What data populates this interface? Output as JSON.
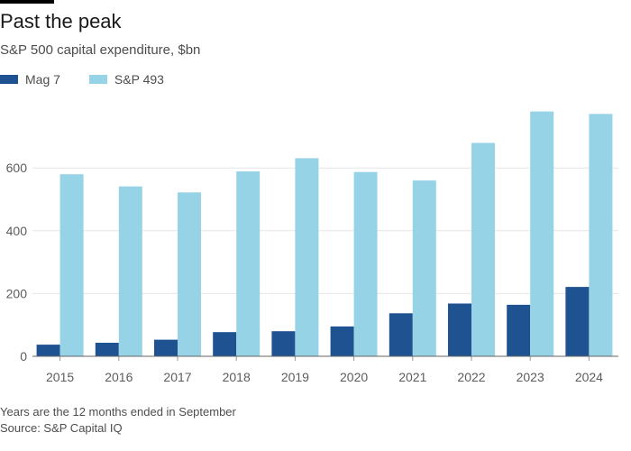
{
  "header": {
    "title": "Past the peak",
    "subtitle": "S&P 500 capital expenditure, $bn"
  },
  "footer": {
    "note": "Years are the 12 months ended in September",
    "source": "Source: S&P Capital IQ"
  },
  "chart_data": {
    "type": "bar",
    "title": "Past the peak",
    "subtitle": "S&P 500 capital expenditure, $bn",
    "xlabel": "",
    "ylabel": "",
    "categories": [
      "2015",
      "2016",
      "2017",
      "2018",
      "2019",
      "2020",
      "2021",
      "2022",
      "2023",
      "2024"
    ],
    "series": [
      {
        "name": "Mag 7",
        "color": "#1f5290",
        "values": [
          37,
          43,
          53,
          77,
          80,
          95,
          137,
          168,
          164,
          221
        ]
      },
      {
        "name": "S&P 493",
        "color": "#96d3e6",
        "values": [
          580,
          541,
          522,
          589,
          631,
          587,
          560,
          680,
          780,
          772
        ]
      }
    ],
    "ylim": [
      0,
      800
    ],
    "yticks": [
      0,
      200,
      400,
      600
    ],
    "grid": true,
    "legend": "top-left"
  }
}
